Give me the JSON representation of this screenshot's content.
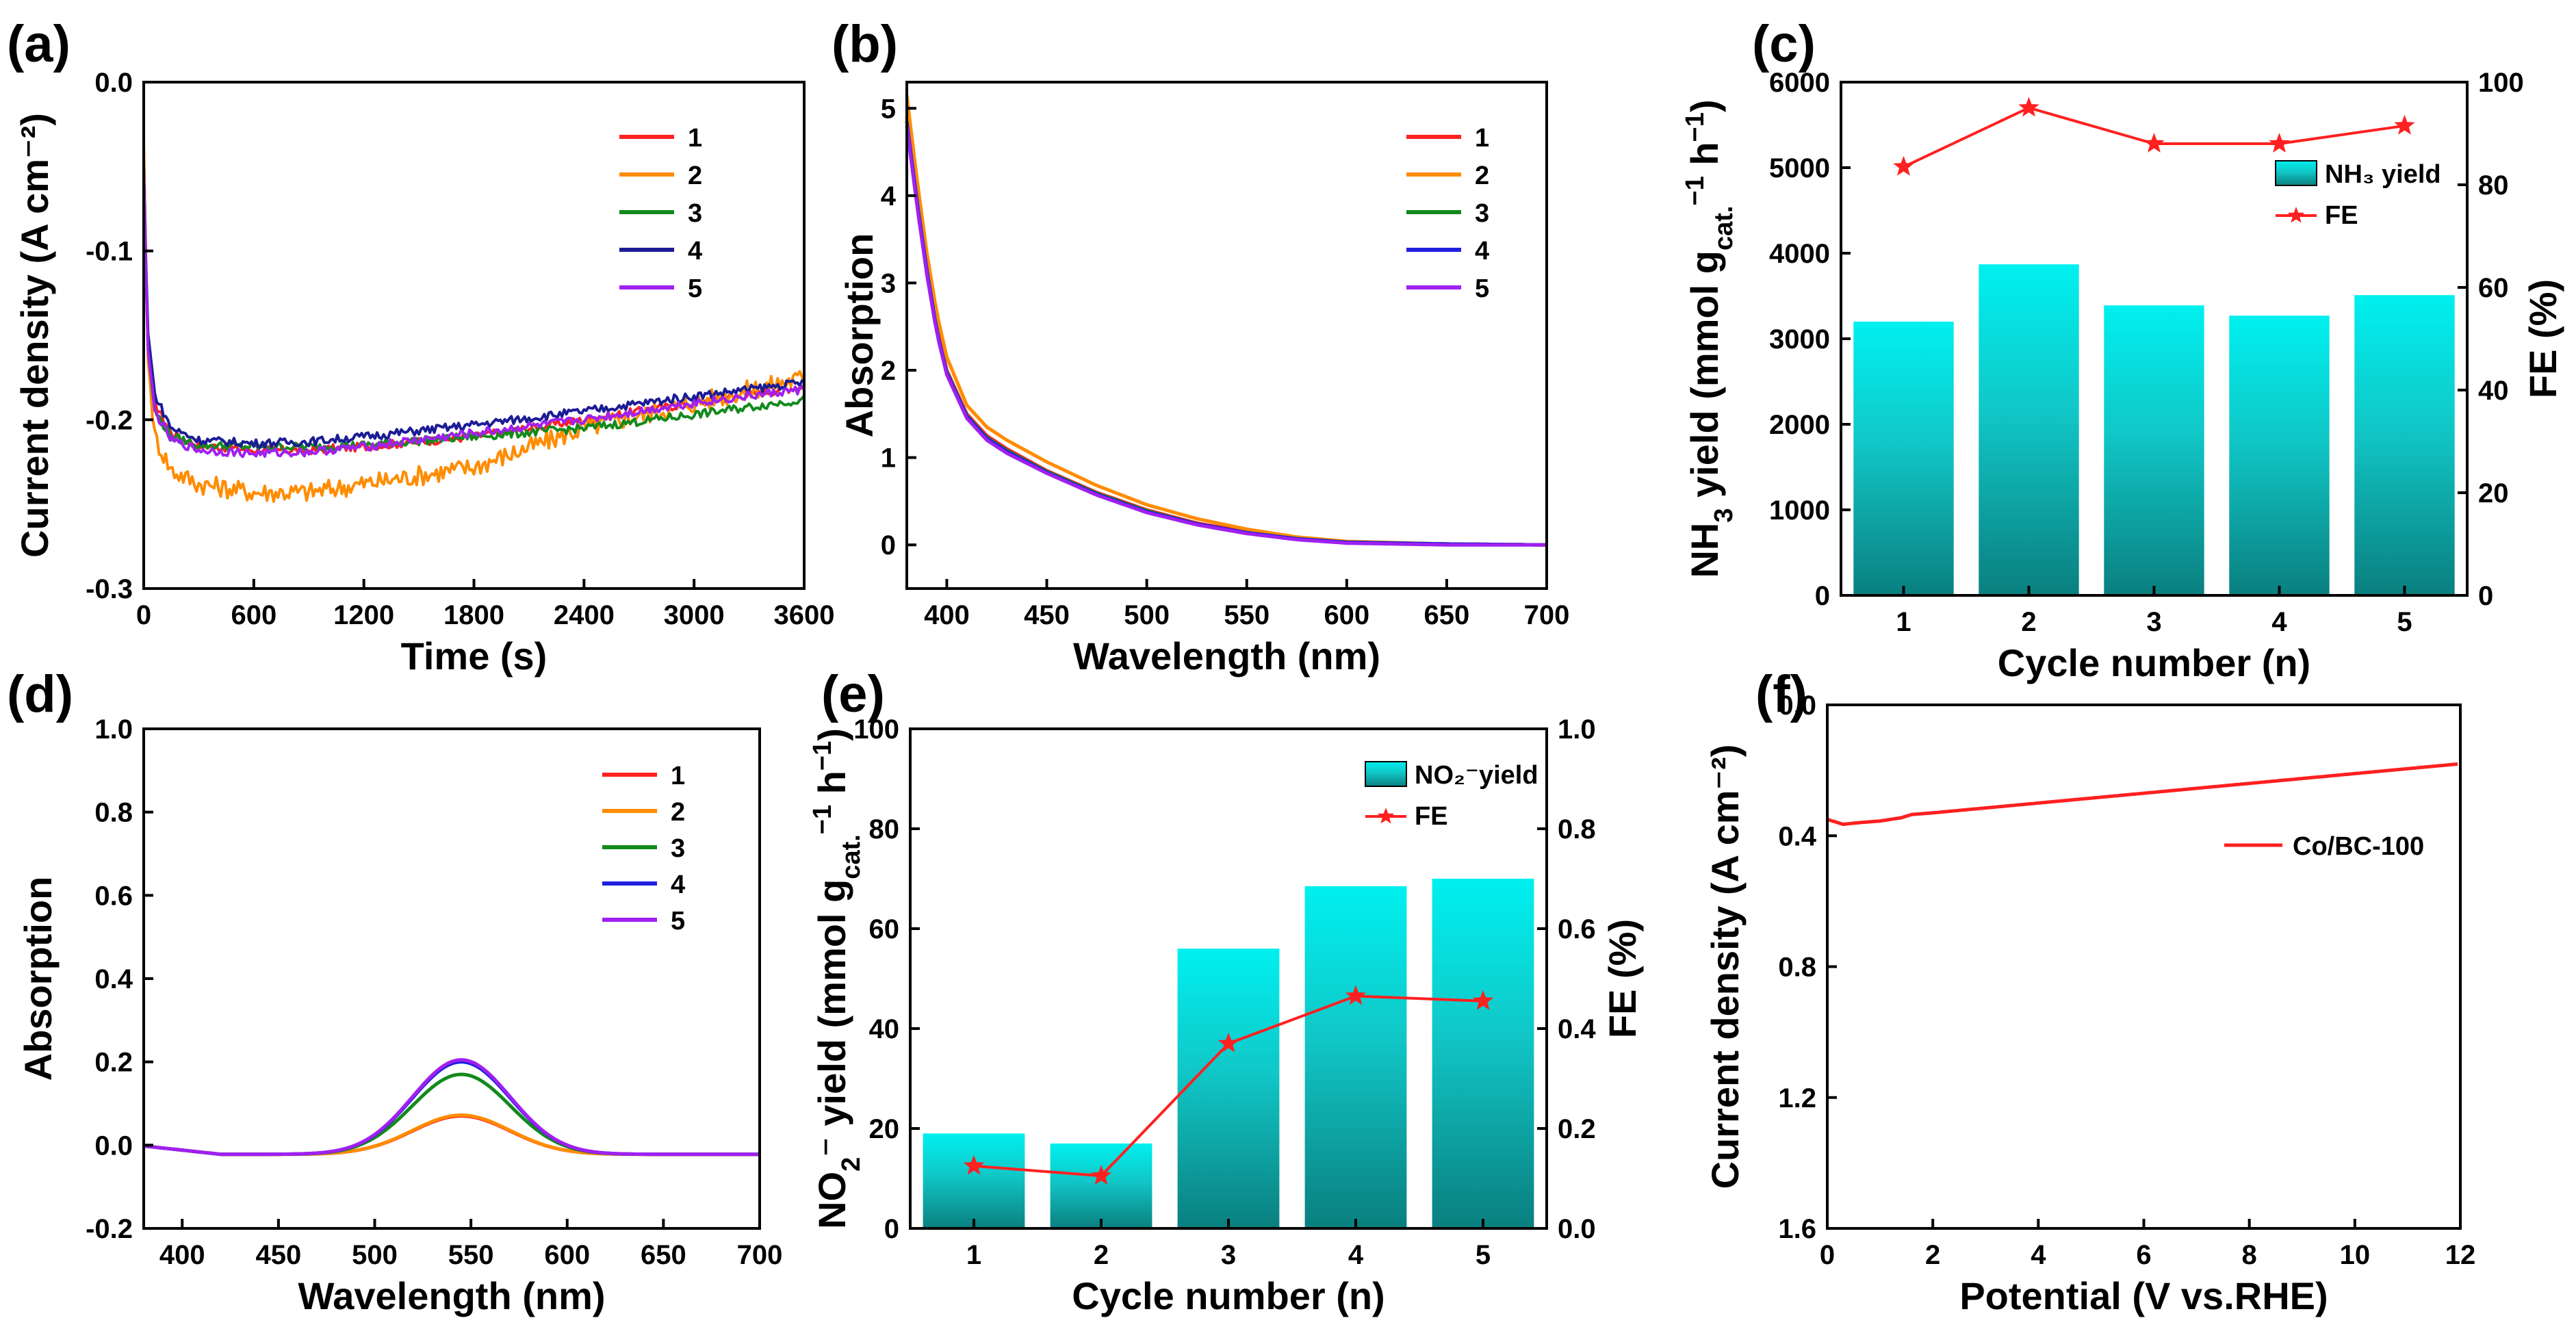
{
  "chart_data": [
    {
      "panel": "(a)",
      "type": "line",
      "xlabel": "Time (s)",
      "ylabel": "Current density (A cm⁻²)",
      "xlim": [
        0,
        3600
      ],
      "ylim": [
        -0.3,
        0.0
      ],
      "xticks": [
        0,
        600,
        1200,
        1800,
        2400,
        3000,
        3600
      ],
      "yticks": [
        0.0,
        -0.1,
        -0.2,
        -0.3
      ],
      "ytick_labels": [
        "0.0",
        "-0.1",
        "-0.2",
        "-0.3"
      ],
      "series": [
        {
          "name": "1",
          "color": "#ff2020",
          "x": [
            0,
            20,
            60,
            150,
            300,
            600,
            900,
            1200,
            1800,
            2400,
            3000,
            3600
          ],
          "y": [
            -0.04,
            -0.15,
            -0.19,
            -0.208,
            -0.215,
            -0.218,
            -0.218,
            -0.216,
            -0.21,
            -0.2,
            -0.19,
            -0.18
          ]
        },
        {
          "name": "2",
          "color": "#ff8c00",
          "x": [
            0,
            20,
            60,
            150,
            300,
            600,
            900,
            1200,
            1800,
            2400,
            3000,
            3600
          ],
          "y": [
            -0.035,
            -0.16,
            -0.21,
            -0.23,
            -0.238,
            -0.243,
            -0.243,
            -0.238,
            -0.228,
            -0.205,
            -0.19,
            -0.175
          ]
        },
        {
          "name": "3",
          "color": "#138a1c",
          "x": [
            0,
            20,
            60,
            150,
            300,
            600,
            900,
            1200,
            1800,
            2400,
            3000,
            3600
          ],
          "y": [
            -0.05,
            -0.155,
            -0.195,
            -0.21,
            -0.215,
            -0.216,
            -0.216,
            -0.215,
            -0.21,
            -0.205,
            -0.197,
            -0.188
          ]
        },
        {
          "name": "4",
          "color": "#1c1c96",
          "x": [
            0,
            20,
            60,
            150,
            300,
            600,
            900,
            1200,
            1800,
            2400,
            3000,
            3600
          ],
          "y": [
            -0.05,
            -0.145,
            -0.185,
            -0.205,
            -0.212,
            -0.214,
            -0.213,
            -0.21,
            -0.203,
            -0.195,
            -0.186,
            -0.178
          ]
        },
        {
          "name": "5",
          "color": "#a020f0",
          "x": [
            0,
            20,
            60,
            150,
            300,
            600,
            900,
            1200,
            1800,
            2400,
            3000,
            3600
          ],
          "y": [
            -0.05,
            -0.155,
            -0.195,
            -0.212,
            -0.218,
            -0.22,
            -0.219,
            -0.216,
            -0.208,
            -0.2,
            -0.19,
            -0.182
          ]
        }
      ]
    },
    {
      "panel": "(b)",
      "type": "line",
      "xlabel": "Wavelength (nm)",
      "ylabel": "Absorption",
      "xlim": [
        380,
        700
      ],
      "ylim": [
        -0.5,
        5.3
      ],
      "xticks": [
        400,
        450,
        500,
        550,
        600,
        650,
        700
      ],
      "yticks": [
        0,
        1,
        2,
        3,
        4,
        5
      ],
      "series": [
        {
          "name": "1",
          "color": "#ff2020",
          "x": [
            380,
            385,
            390,
            395,
            400,
            410,
            420,
            430,
            450,
            475,
            500,
            525,
            550,
            575,
            600,
            650,
            700
          ],
          "y": [
            4.9,
            4.0,
            3.2,
            2.5,
            2.0,
            1.5,
            1.25,
            1.1,
            0.85,
            0.6,
            0.4,
            0.25,
            0.15,
            0.07,
            0.03,
            0.01,
            0.0
          ]
        },
        {
          "name": "2",
          "color": "#ff8c00",
          "x": [
            380,
            385,
            390,
            395,
            400,
            410,
            420,
            430,
            450,
            475,
            500,
            525,
            550,
            575,
            600,
            650,
            700
          ],
          "y": [
            5.15,
            4.2,
            3.35,
            2.65,
            2.15,
            1.6,
            1.35,
            1.2,
            0.95,
            0.68,
            0.46,
            0.3,
            0.18,
            0.09,
            0.04,
            0.01,
            0.0
          ]
        },
        {
          "name": "3",
          "color": "#138a1c",
          "x": [
            380,
            385,
            390,
            395,
            400,
            410,
            420,
            430,
            450,
            475,
            500,
            525,
            550,
            575,
            600,
            650,
            700
          ],
          "y": [
            4.85,
            3.95,
            3.15,
            2.45,
            1.98,
            1.48,
            1.23,
            1.08,
            0.84,
            0.59,
            0.39,
            0.24,
            0.14,
            0.07,
            0.03,
            0.01,
            0.0
          ]
        },
        {
          "name": "4",
          "color": "#2020e0",
          "x": [
            380,
            385,
            390,
            395,
            400,
            410,
            420,
            430,
            450,
            475,
            500,
            525,
            550,
            575,
            600,
            650,
            700
          ],
          "y": [
            4.85,
            3.95,
            3.15,
            2.45,
            1.97,
            1.47,
            1.22,
            1.07,
            0.83,
            0.58,
            0.38,
            0.24,
            0.14,
            0.07,
            0.03,
            0.01,
            0.0
          ]
        },
        {
          "name": "5",
          "color": "#a020f0",
          "x": [
            380,
            385,
            390,
            395,
            400,
            410,
            420,
            430,
            450,
            475,
            500,
            525,
            550,
            575,
            600,
            650,
            700
          ],
          "y": [
            4.8,
            3.9,
            3.1,
            2.42,
            1.95,
            1.45,
            1.2,
            1.05,
            0.82,
            0.57,
            0.37,
            0.23,
            0.13,
            0.06,
            0.02,
            0.0,
            0.0
          ]
        }
      ]
    },
    {
      "panel": "(c)",
      "type": "bar",
      "xlabel": "Cycle number (n)",
      "ylabel_base": "NH",
      "ylabel_sub": "3",
      "ylabel_mid": " yield (mmol g",
      "ylabel_sub2": "cat.",
      "ylabel_sup": "−1",
      "ylabel_end": " h",
      "ylabel_sup2": "−1",
      "ylabel_close": ")",
      "y2label": "FE (%)",
      "categories": [
        "1",
        "2",
        "3",
        "4",
        "5"
      ],
      "ylim": [
        0,
        6000
      ],
      "y2lim": [
        0,
        100
      ],
      "yticks": [
        0,
        1000,
        2000,
        3000,
        4000,
        5000,
        6000
      ],
      "y2ticks": [
        0,
        20,
        40,
        60,
        80,
        100
      ],
      "series": [
        {
          "name": "NH₃ yield",
          "axis": "left",
          "type": "bar",
          "values": [
            3200,
            3870,
            3390,
            3270,
            3510
          ]
        },
        {
          "name": "FE",
          "axis": "right",
          "type": "line",
          "color": "#ff2020",
          "values": [
            83.5,
            95.0,
            88.0,
            88.0,
            91.5
          ]
        }
      ],
      "legend": [
        "NH₃ yield",
        "FE"
      ]
    },
    {
      "panel": "(d)",
      "type": "line",
      "xlabel": "Wavelength (nm)",
      "ylabel": "Absorption",
      "xlim": [
        380,
        700
      ],
      "ylim": [
        -0.2,
        1.0
      ],
      "xticks": [
        400,
        450,
        500,
        550,
        600,
        650,
        700
      ],
      "yticks": [
        -0.2,
        0.0,
        0.2,
        0.4,
        0.6,
        0.8,
        1.0
      ],
      "ytick_labels": [
        "-0.2",
        "0.0",
        "0.2",
        "0.4",
        "0.6",
        "0.8",
        "1.0"
      ],
      "series": [
        {
          "name": "1",
          "color": "#ff2020",
          "peak": 0.07
        },
        {
          "name": "2",
          "color": "#ff8c00",
          "peak": 0.072
        },
        {
          "name": "3",
          "color": "#138a1c",
          "peak": 0.17
        },
        {
          "name": "4",
          "color": "#2020e0",
          "peak": 0.2
        },
        {
          "name": "5",
          "color": "#a020f0",
          "peak": 0.205
        }
      ],
      "peak_center_nm": 545,
      "baseline": -0.022
    },
    {
      "panel": "(e)",
      "type": "bar",
      "xlabel": "Cycle number (n)",
      "ylabel_parts": [
        "NO",
        "2",
        "⁻ yield (mmol g",
        "cat.",
        "−1",
        " h",
        "−1",
        ")"
      ],
      "y2label": "FE (%)",
      "categories": [
        "1",
        "2",
        "3",
        "4",
        "5"
      ],
      "ylim": [
        0,
        100
      ],
      "y2lim": [
        0,
        1.0
      ],
      "yticks": [
        0,
        20,
        40,
        60,
        80,
        100
      ],
      "y2ticks": [
        0.0,
        0.2,
        0.4,
        0.6,
        0.8,
        1.0
      ],
      "y2tick_labels": [
        "0.0",
        "0.2",
        "0.4",
        "0.6",
        "0.8",
        "1.0"
      ],
      "series": [
        {
          "name": "NO₂⁻yield",
          "axis": "left",
          "type": "bar",
          "values": [
            19,
            17,
            56,
            68.5,
            70
          ]
        },
        {
          "name": "FE",
          "axis": "right",
          "type": "line",
          "color": "#ff2020",
          "values": [
            0.125,
            0.105,
            0.37,
            0.465,
            0.455
          ]
        }
      ],
      "legend": [
        "NO₂⁻yield",
        "FE"
      ]
    },
    {
      "panel": "(f)",
      "type": "line",
      "xlabel": "Potential (V vs.RHE)",
      "ylabel": "Current density (A cm⁻²)",
      "xlim": [
        0,
        12
      ],
      "ylim": [
        1.6,
        0.0
      ],
      "y_inverted": true,
      "xticks": [
        0,
        2,
        4,
        6,
        8,
        10,
        12
      ],
      "yticks": [
        0.0,
        0.4,
        0.8,
        1.2,
        1.6
      ],
      "ytick_labels": [
        "0.0",
        "0.4",
        "0.8",
        "1.2",
        "1.6"
      ],
      "series": [
        {
          "name": "Co/BC-100",
          "color": "#ff2020",
          "x": [
            0,
            0.3,
            0.6,
            1.0,
            1.4,
            1.6,
            2,
            4,
            6,
            8,
            10,
            12
          ],
          "y": [
            0.35,
            0.365,
            0.36,
            0.355,
            0.345,
            0.335,
            0.33,
            0.3,
            0.27,
            0.24,
            0.21,
            0.18
          ]
        }
      ]
    }
  ]
}
